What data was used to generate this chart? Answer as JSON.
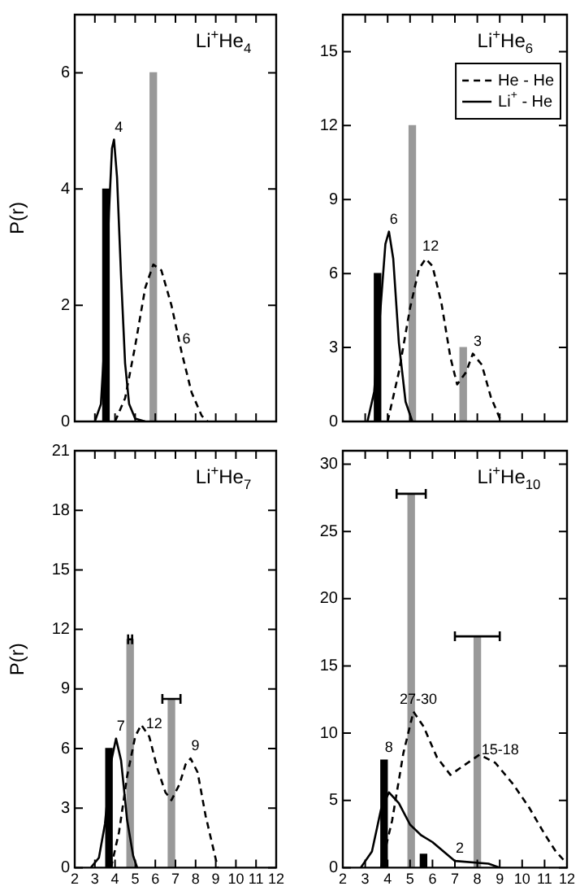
{
  "chart_data": [
    {
      "type": "line",
      "title": "Li$^{+}$He$_{4}$",
      "ylabel": "P(r)",
      "xlim": [
        2,
        12
      ],
      "xticks": [
        2,
        3,
        4,
        5,
        6,
        7,
        8,
        9,
        10,
        11,
        12
      ],
      "ylim": [
        0,
        7
      ],
      "yticks": [
        0,
        2,
        4,
        6
      ],
      "tick_labels": "y",
      "marker": "none",
      "series": [
        {
          "type": "line",
          "line_style": "dashed",
          "color": "#000000",
          "x": [
            4.0,
            4.5,
            5.0,
            5.5,
            5.9,
            6.3,
            6.8,
            7.3,
            7.8,
            8.3,
            8.6
          ],
          "values": [
            0,
            0.4,
            1.3,
            2.3,
            2.7,
            2.6,
            2.0,
            1.2,
            0.5,
            0.1,
            0
          ]
        },
        {
          "type": "line",
          "line_style": "solid",
          "color": "#000000",
          "x": [
            3.0,
            3.3,
            3.5,
            3.7,
            3.85,
            3.95,
            4.1,
            4.3,
            4.5,
            4.7,
            5.0,
            5.5
          ],
          "values": [
            0,
            0.3,
            1.5,
            3.6,
            4.7,
            4.85,
            4.2,
            2.5,
            1.0,
            0.3,
            0.05,
            0
          ]
        },
        {
          "type": "bar",
          "color": "#000000",
          "x": [
            3.55
          ],
          "values": [
            4
          ]
        },
        {
          "type": "bar",
          "color": "#999999",
          "x": [
            5.9
          ],
          "values": [
            6
          ]
        }
      ],
      "annotations": [
        {
          "text": "4",
          "x": 3.95,
          "y": 4.85
        },
        {
          "text": "6",
          "x": 7.3,
          "y": 1.2
        }
      ]
    },
    {
      "type": "line",
      "title": "Li$^{+}$He$_{6}$",
      "xlim": [
        2,
        12
      ],
      "xticks": [
        2,
        3,
        4,
        5,
        6,
        7,
        8,
        9,
        10,
        11,
        12
      ],
      "ylim": [
        0,
        16.5
      ],
      "yticks": [
        0,
        3,
        6,
        9,
        12,
        15
      ],
      "tick_labels": "y",
      "marker": "none",
      "legend": "top right",
      "series": [
        {
          "name": "He - He",
          "type": "line",
          "line_style": "dashed",
          "color": "#000000",
          "x": [
            4.0,
            4.5,
            5.0,
            5.4,
            5.7,
            6.0,
            6.4,
            6.8,
            7.1,
            7.5,
            7.8,
            8.2,
            8.6,
            9.06
          ],
          "values": [
            0,
            2.0,
            4.6,
            6.2,
            6.6,
            6.3,
            4.8,
            2.6,
            1.5,
            2.0,
            2.75,
            2.3,
            1.0,
            0
          ]
        },
        {
          "name": "Li$^{+}$ - He",
          "type": "line",
          "line_style": "solid",
          "color": "#000000",
          "x": [
            3.1,
            3.4,
            3.7,
            3.9,
            4.06,
            4.25,
            4.5,
            4.8,
            5.1
          ],
          "values": [
            0,
            1.2,
            4.8,
            7.2,
            7.7,
            6.6,
            3.2,
            0.8,
            0
          ]
        },
        {
          "type": "bar",
          "color": "#000000",
          "x": [
            3.55
          ],
          "values": [
            6
          ]
        },
        {
          "type": "bar",
          "color": "#999999",
          "x": [
            5.1,
            7.37
          ],
          "values": [
            12,
            3
          ]
        }
      ],
      "annotations": [
        {
          "text": "6",
          "x": 4.06,
          "y": 7.7
        },
        {
          "text": "12",
          "x": 5.7,
          "y": 6.6
        },
        {
          "text": "3",
          "x": 7.8,
          "y": 2.75
        }
      ]
    },
    {
      "type": "line",
      "title": "Li$^{+}$He$_{7}$",
      "ylabel": "P(r)",
      "xlim": [
        2,
        12
      ],
      "xticks": [
        2,
        3,
        4,
        5,
        6,
        7,
        8,
        9,
        10,
        11,
        12
      ],
      "ylim": [
        0,
        21
      ],
      "yticks": [
        0,
        3,
        6,
        9,
        12,
        15,
        18,
        21
      ],
      "marker": "none",
      "series": [
        {
          "type": "line",
          "line_style": "dashed",
          "color": "#000000",
          "x": [
            3.8,
            4.2,
            4.6,
            5.0,
            5.3,
            5.7,
            6.1,
            6.5,
            6.8,
            7.2,
            7.5,
            7.75,
            8.1,
            8.5,
            9.1
          ],
          "values": [
            0,
            1.8,
            4.6,
            6.6,
            7.2,
            6.6,
            5.0,
            3.8,
            3.4,
            4.2,
            5.2,
            5.5,
            4.8,
            2.6,
            0
          ]
        },
        {
          "type": "line",
          "line_style": "solid",
          "color": "#000000",
          "x": [
            2.8,
            3.2,
            3.5,
            3.8,
            4.05,
            4.3,
            4.6,
            4.9,
            5.1
          ],
          "values": [
            0,
            0.5,
            2.2,
            5.3,
            6.5,
            5.4,
            2.4,
            0.6,
            0
          ]
        },
        {
          "type": "bar",
          "color": "#000000",
          "x": [
            3.7
          ],
          "values": [
            6
          ]
        },
        {
          "type": "bar",
          "color": "#999999",
          "x": [
            4.75,
            6.8
          ],
          "values": [
            11.5,
            8.5
          ],
          "xerrors": [
            0.1,
            0.45
          ]
        }
      ],
      "annotations": [
        {
          "text": "7",
          "x": 4.05,
          "y": 6.5
        },
        {
          "text": "12",
          "x": 5.7,
          "y": 6.6
        },
        {
          "text": "9",
          "x": 7.75,
          "y": 5.5
        }
      ]
    },
    {
      "type": "line",
      "title": "Li$^{+}$He$_{10}$",
      "xlim": [
        2,
        12
      ],
      "xticks": [
        2,
        3,
        4,
        5,
        6,
        7,
        8,
        9,
        10,
        11,
        12
      ],
      "ylim": [
        0,
        31
      ],
      "yticks": [
        0,
        5,
        10,
        15,
        20,
        25,
        30
      ],
      "marker": "none",
      "series": [
        {
          "type": "line",
          "line_style": "dashed",
          "color": "#000000",
          "x": [
            3.7,
            4.2,
            4.7,
            5.15,
            5.6,
            6.2,
            6.8,
            7.4,
            8.1,
            8.8,
            9.6,
            10.3,
            11.0,
            11.5,
            12.0
          ],
          "values": [
            0,
            3.5,
            8.5,
            11.6,
            10.5,
            8.2,
            6.9,
            7.6,
            8.4,
            7.8,
            6.2,
            4.5,
            2.5,
            1.2,
            0.3
          ]
        },
        {
          "type": "line",
          "line_style": "solid",
          "color": "#000000",
          "x": [
            2.8,
            3.3,
            3.7,
            4.06,
            4.5,
            5.0,
            5.5,
            6.0,
            7.0,
            8.5,
            9.0
          ],
          "values": [
            0,
            1.2,
            4.3,
            5.6,
            4.8,
            3.2,
            2.4,
            1.9,
            0.5,
            0.3,
            0
          ]
        },
        {
          "type": "bar",
          "color": "#000000",
          "x": [
            3.84,
            5.6
          ],
          "values": [
            8,
            1
          ]
        },
        {
          "type": "bar",
          "color": "#999999",
          "x": [
            5.05,
            8.0
          ],
          "values": [
            27.8,
            17.2
          ],
          "xerrors": [
            0.65,
            1.0
          ]
        }
      ],
      "annotations": [
        {
          "text": "8",
          "x": 3.84,
          "y": 8
        },
        {
          "text": "27-30",
          "x": 5.15,
          "y": 11.6
        },
        {
          "text": "15-18",
          "x": 8.8,
          "y": 7.8
        },
        {
          "text": "2",
          "x": 7.0,
          "y": 0.5
        }
      ]
    }
  ]
}
